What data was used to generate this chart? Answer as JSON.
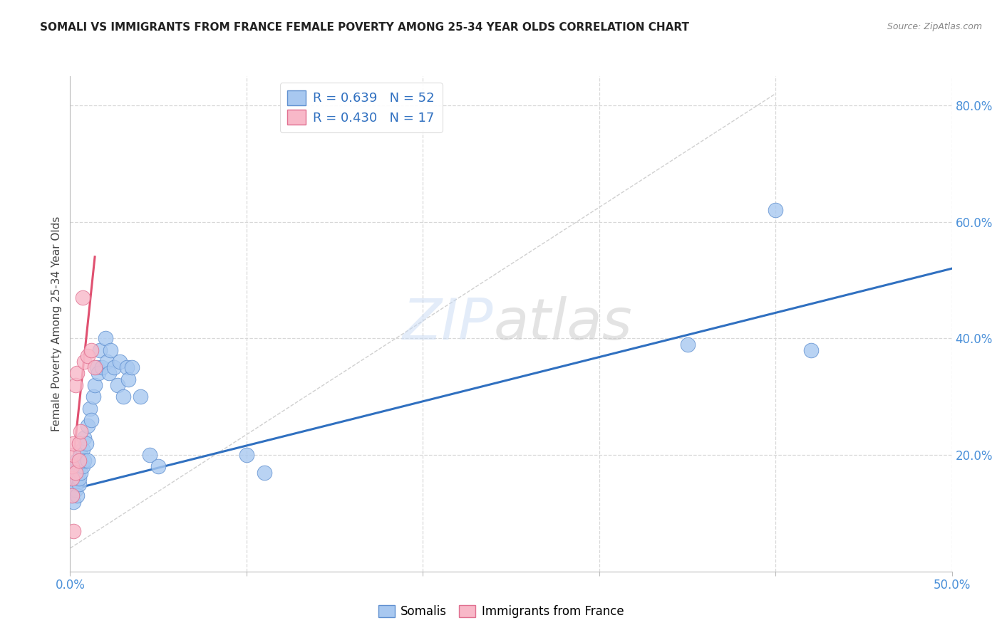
{
  "title": "SOMALI VS IMMIGRANTS FROM FRANCE FEMALE POVERTY AMONG 25-34 YEAR OLDS CORRELATION CHART",
  "source": "Source: ZipAtlas.com",
  "ylabel": "Female Poverty Among 25-34 Year Olds",
  "watermark_zip": "ZIP",
  "watermark_atlas": "atlas",
  "legend_line1": "R = 0.639   N = 52",
  "legend_line2": "R = 0.430   N = 17",
  "somali_color": "#a8c8f0",
  "france_color": "#f8b8c8",
  "somali_edge": "#6090d0",
  "france_edge": "#e07090",
  "trend_blue": "#3070c0",
  "trend_pink": "#e05070",
  "ref_line_color": "#d0d0d0",
  "grid_color": "#d8d8d8",
  "xlim": [
    0.0,
    0.5
  ],
  "ylim": [
    0.0,
    0.85
  ],
  "somali_x": [
    0.001,
    0.001,
    0.001,
    0.002,
    0.002,
    0.002,
    0.002,
    0.003,
    0.003,
    0.003,
    0.004,
    0.004,
    0.004,
    0.005,
    0.005,
    0.005,
    0.006,
    0.006,
    0.007,
    0.007,
    0.008,
    0.008,
    0.009,
    0.01,
    0.01,
    0.011,
    0.012,
    0.013,
    0.014,
    0.015,
    0.016,
    0.017,
    0.018,
    0.02,
    0.021,
    0.022,
    0.023,
    0.025,
    0.027,
    0.028,
    0.03,
    0.032,
    0.033,
    0.035,
    0.04,
    0.045,
    0.05,
    0.1,
    0.11,
    0.35,
    0.4,
    0.42
  ],
  "somali_y": [
    0.15,
    0.17,
    0.13,
    0.16,
    0.18,
    0.14,
    0.12,
    0.15,
    0.17,
    0.14,
    0.19,
    0.16,
    0.13,
    0.18,
    0.15,
    0.16,
    0.2,
    0.17,
    0.21,
    0.18,
    0.23,
    0.19,
    0.22,
    0.25,
    0.19,
    0.28,
    0.26,
    0.3,
    0.32,
    0.35,
    0.34,
    0.38,
    0.35,
    0.4,
    0.36,
    0.34,
    0.38,
    0.35,
    0.32,
    0.36,
    0.3,
    0.35,
    0.33,
    0.35,
    0.3,
    0.2,
    0.18,
    0.2,
    0.17,
    0.39,
    0.62,
    0.38
  ],
  "france_x": [
    0.001,
    0.001,
    0.001,
    0.002,
    0.002,
    0.003,
    0.003,
    0.004,
    0.005,
    0.005,
    0.006,
    0.007,
    0.008,
    0.01,
    0.012,
    0.014,
    0.002
  ],
  "france_y": [
    0.16,
    0.18,
    0.13,
    0.2,
    0.22,
    0.17,
    0.32,
    0.34,
    0.19,
    0.22,
    0.24,
    0.47,
    0.36,
    0.37,
    0.38,
    0.35,
    0.07
  ],
  "blue_line_x": [
    0.0,
    0.5
  ],
  "blue_line_y": [
    0.14,
    0.52
  ],
  "pink_line_x": [
    0.0,
    0.014
  ],
  "pink_line_y": [
    0.14,
    0.54
  ],
  "ref_line_x": [
    0.0,
    0.4
  ],
  "ref_line_y": [
    0.04,
    0.82
  ]
}
